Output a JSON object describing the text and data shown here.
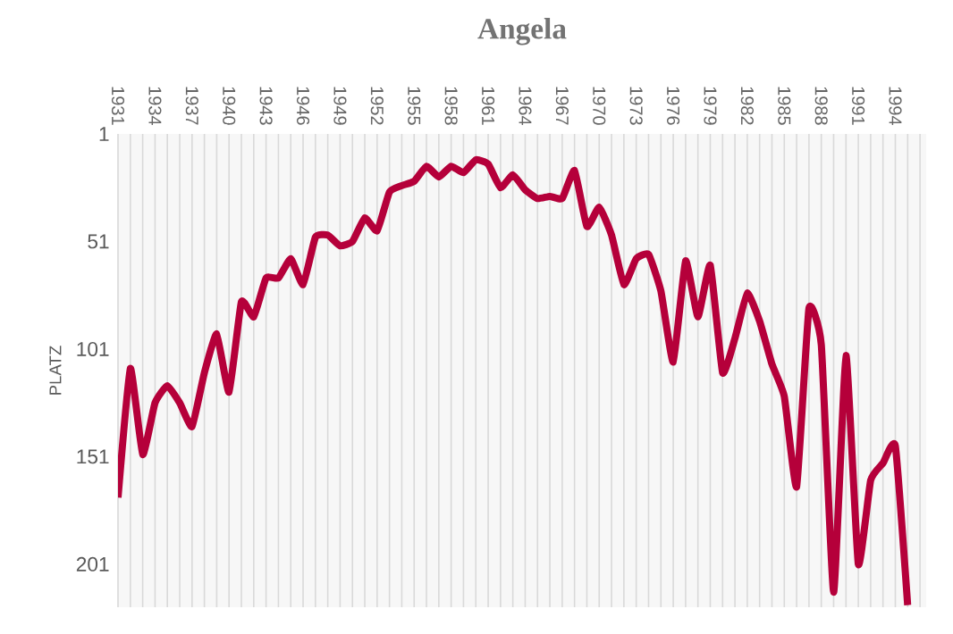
{
  "chart_data": {
    "type": "line",
    "title": "Angela",
    "ylabel": "PLATZ",
    "x": [
      1931,
      1932,
      1933,
      1934,
      1935,
      1936,
      1937,
      1938,
      1939,
      1940,
      1941,
      1942,
      1943,
      1944,
      1945,
      1946,
      1947,
      1948,
      1949,
      1950,
      1951,
      1952,
      1953,
      1954,
      1955,
      1956,
      1957,
      1958,
      1959,
      1960,
      1961,
      1962,
      1963,
      1964,
      1965,
      1966,
      1967,
      1968,
      1969,
      1970,
      1971,
      1972,
      1973,
      1974,
      1975,
      1976,
      1977,
      1978,
      1979,
      1980,
      1981,
      1982,
      1983,
      1984,
      1985,
      1986,
      1987,
      1988,
      1989,
      1990,
      1991,
      1992,
      1993,
      1994,
      1995
    ],
    "series": [
      {
        "color": "#b5003a",
        "values": [
          170,
          110,
          150,
          126,
          118,
          126,
          137,
          112,
          94,
          121,
          79,
          86,
          68,
          68,
          59,
          71,
          49,
          48,
          53,
          51,
          40,
          46,
          28,
          25,
          23,
          16,
          21,
          16,
          19,
          13,
          15,
          26,
          20,
          27,
          31,
          30,
          31,
          18,
          44,
          35,
          48,
          71,
          59,
          57,
          74,
          107,
          60,
          86,
          62,
          112,
          96,
          75,
          88,
          108,
          123,
          165,
          82,
          99,
          214,
          104,
          201,
          162,
          154,
          146,
          220
        ]
      }
    ],
    "xlim": [
      1931,
      1996.5
    ],
    "ylim": [
      221,
      1
    ],
    "xticks": [
      1931,
      {
        "value": 1932,
        "label": null
      },
      {
        "value": 1933,
        "label": null
      },
      1934,
      {
        "value": 1935,
        "label": null
      },
      {
        "value": 1936,
        "label": null
      },
      1937,
      {
        "value": 1938,
        "label": null
      },
      {
        "value": 1939,
        "label": null
      },
      1940,
      {
        "value": 1941,
        "label": null
      },
      {
        "value": 1942,
        "label": null
      },
      1943,
      {
        "value": 1944,
        "label": null
      },
      {
        "value": 1945,
        "label": null
      },
      1946,
      {
        "value": 1947,
        "label": null
      },
      {
        "value": 1948,
        "label": null
      },
      1949,
      {
        "value": 1950,
        "label": null
      },
      {
        "value": 1951,
        "label": null
      },
      1952,
      {
        "value": 1953,
        "label": null
      },
      {
        "value": 1954,
        "label": null
      },
      1955,
      {
        "value": 1956,
        "label": null
      },
      {
        "value": 1957,
        "label": null
      },
      1958,
      {
        "value": 1959,
        "label": null
      },
      {
        "value": 1960,
        "label": null
      },
      1961,
      {
        "value": 1962,
        "label": null
      },
      {
        "value": 1963,
        "label": null
      },
      1964,
      {
        "value": 1965,
        "label": null
      },
      {
        "value": 1966,
        "label": null
      },
      1967,
      {
        "value": 1968,
        "label": null
      },
      {
        "value": 1969,
        "label": null
      },
      1970,
      {
        "value": 1971,
        "label": null
      },
      {
        "value": 1972,
        "label": null
      },
      1973,
      {
        "value": 1974,
        "label": null
      },
      {
        "value": 1975,
        "label": null
      },
      1976,
      {
        "value": 1977,
        "label": null
      },
      {
        "value": 1978,
        "label": null
      },
      1979,
      {
        "value": 1980,
        "label": null
      },
      {
        "value": 1981,
        "label": null
      },
      1982,
      {
        "value": 1983,
        "label": null
      },
      {
        "value": 1984,
        "label": null
      },
      1985,
      {
        "value": 1986,
        "label": null
      },
      {
        "value": 1987,
        "label": null
      },
      1988,
      {
        "value": 1989,
        "label": null
      },
      {
        "value": 1990,
        "label": null
      },
      1991,
      {
        "value": 1992,
        "label": null
      },
      {
        "value": 1993,
        "label": null
      },
      1994,
      {
        "value": 1995,
        "label": null
      },
      {
        "value": 1996,
        "label": null
      }
    ],
    "yticks": [
      1,
      51,
      101,
      151,
      201
    ],
    "grid": "x",
    "marker": "none",
    "line_style": "solid"
  }
}
